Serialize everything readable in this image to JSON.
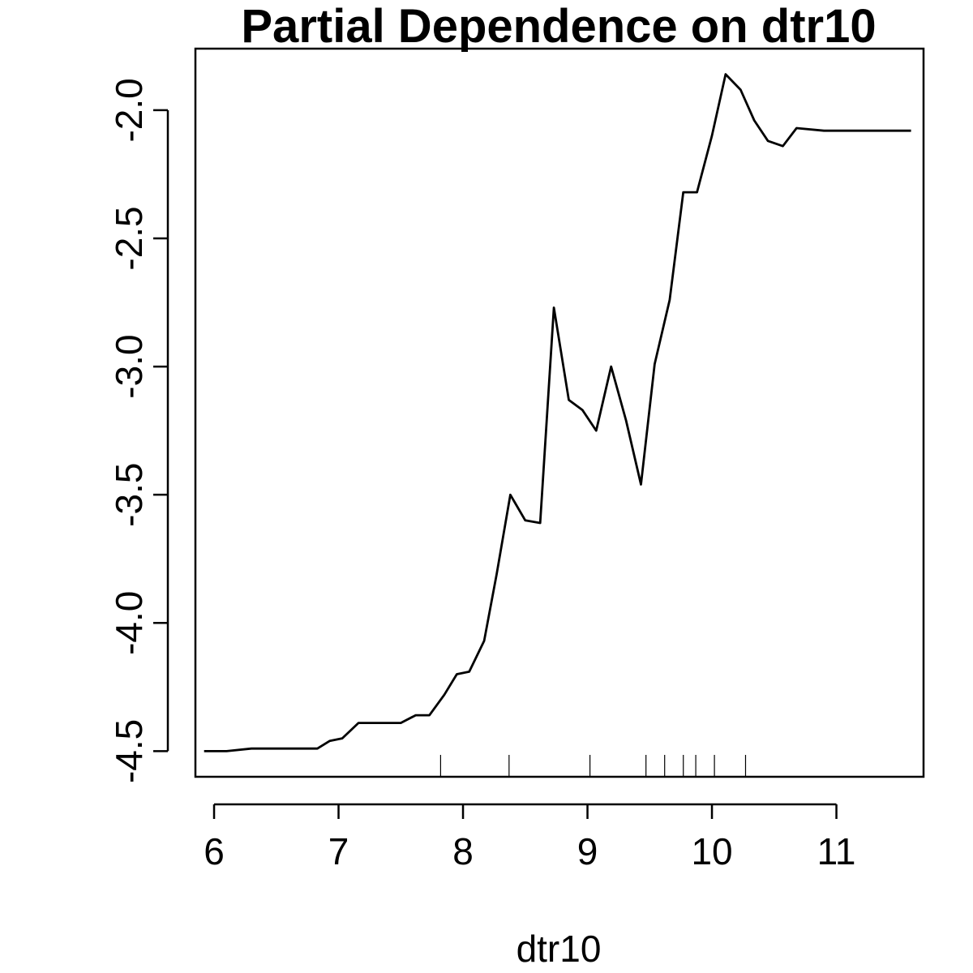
{
  "chart_data": {
    "type": "line",
    "title": "Partial Dependence on dtr10",
    "xlabel": "dtr10",
    "ylabel": "",
    "xlim": [
      5.85,
      11.7
    ],
    "ylim": [
      -4.6,
      -1.76
    ],
    "x_ticks": [
      6,
      7,
      8,
      9,
      10,
      11
    ],
    "x_tick_labels": [
      "6",
      "7",
      "8",
      "9",
      "10",
      "11"
    ],
    "y_ticks": [
      -4.5,
      -4.0,
      -3.5,
      -3.0,
      -2.5,
      -2.0
    ],
    "y_tick_labels": [
      "-4.5",
      "-4.0",
      "-3.5",
      "-3.0",
      "-2.5",
      "-2.0"
    ],
    "grid": false,
    "series": [
      {
        "x": [
          5.92,
          6.1,
          6.3,
          6.5,
          6.83,
          6.93,
          7.03,
          7.16,
          7.3,
          7.5,
          7.62,
          7.73,
          7.85,
          7.95,
          8.05,
          8.17,
          8.27,
          8.38,
          8.5,
          8.62,
          8.73,
          8.85,
          8.96,
          9.07,
          9.19,
          9.31,
          9.43,
          9.54,
          9.66,
          9.77,
          9.88,
          10.0,
          10.11,
          10.23,
          10.34,
          10.45,
          10.57,
          10.68,
          10.9,
          11.2,
          11.6
        ],
        "y": [
          -4.5,
          -4.5,
          -4.49,
          -4.49,
          -4.49,
          -4.46,
          -4.45,
          -4.39,
          -4.39,
          -4.39,
          -4.36,
          -4.36,
          -4.28,
          -4.2,
          -4.19,
          -4.07,
          -3.81,
          -3.5,
          -3.6,
          -3.61,
          -2.77,
          -3.13,
          -3.17,
          -3.25,
          -3.0,
          -3.21,
          -3.46,
          -2.99,
          -2.74,
          -2.32,
          -2.32,
          -2.1,
          -1.86,
          -1.92,
          -2.04,
          -2.12,
          -2.14,
          -2.07,
          -2.08,
          -2.08,
          -2.08
        ]
      }
    ],
    "rug": [
      7.82,
      8.37,
      9.02,
      9.47,
      9.62,
      9.77,
      9.87,
      10.02,
      10.27
    ]
  }
}
